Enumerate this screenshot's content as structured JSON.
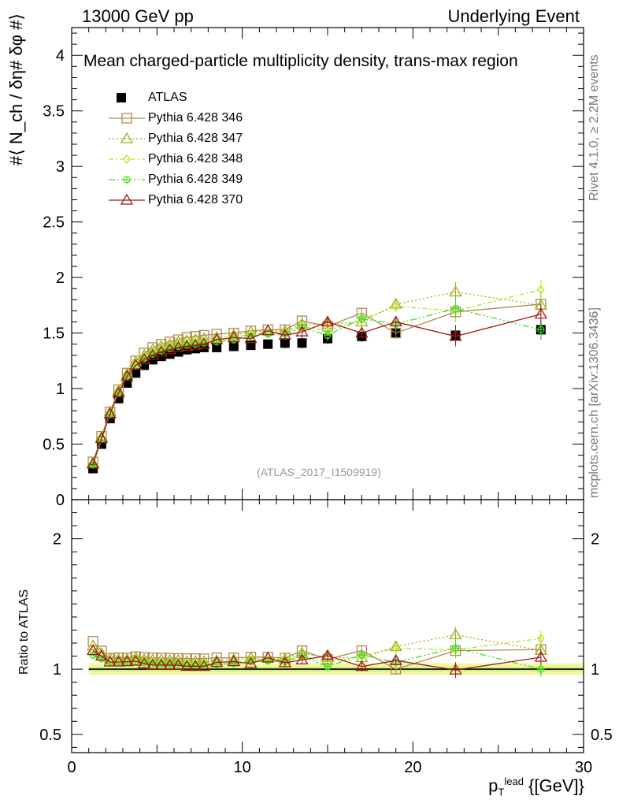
{
  "header": {
    "left": "13000 GeV pp",
    "right": "Underlying Event"
  },
  "side_labels": {
    "rivet": "Rivet 4.1.0, ≥ 2.2M events",
    "mcplots": "mcplots.cern.ch [arXiv:1306.3436]"
  },
  "watermark": "(ATLAS_2017_I1509919)",
  "chart_data": [
    {
      "type": "scatter",
      "panel": "main",
      "title": "Mean charged-particle multiplicity density, trans-max region",
      "ylabel": "#⟨ N_ch / δη# δφ #⟩",
      "ylim": [
        0,
        4.25
      ],
      "xlim": [
        0,
        30
      ],
      "yticks": [
        "0",
        "0.5",
        "1",
        "1.5",
        "2",
        "2.5",
        "3",
        "3.5",
        "4"
      ],
      "x": [
        1.25,
        1.75,
        2.25,
        2.75,
        3.25,
        3.75,
        4.25,
        4.75,
        5.25,
        5.75,
        6.25,
        6.75,
        7.25,
        7.75,
        8.5,
        9.5,
        10.5,
        11.5,
        12.5,
        13.5,
        15,
        17,
        19,
        22.5,
        27.5
      ],
      "series": [
        {
          "name": "ATLAS",
          "color": "#000000",
          "marker": "filled-square",
          "values": [
            0.28,
            0.5,
            0.73,
            0.91,
            1.05,
            1.14,
            1.21,
            1.26,
            1.29,
            1.31,
            1.33,
            1.35,
            1.36,
            1.37,
            1.37,
            1.38,
            1.39,
            1.4,
            1.41,
            1.41,
            1.45,
            1.47,
            1.5,
            1.48,
            1.53
          ]
        },
        {
          "name": "Pythia 6.428 346",
          "color": "#b08a50",
          "marker": "open-square",
          "values": [
            0.34,
            0.57,
            0.79,
            0.99,
            1.14,
            1.25,
            1.32,
            1.37,
            1.4,
            1.42,
            1.44,
            1.46,
            1.47,
            1.48,
            1.49,
            1.5,
            1.52,
            1.53,
            1.53,
            1.61,
            1.56,
            1.68,
            1.5,
            1.69,
            1.76
          ]
        },
        {
          "name": "Pythia 6.428 347",
          "color": "#a0b018",
          "marker": "open-triangle",
          "values": [
            0.33,
            0.56,
            0.79,
            0.98,
            1.13,
            1.24,
            1.3,
            1.35,
            1.38,
            1.4,
            1.42,
            1.43,
            1.44,
            1.45,
            1.46,
            1.48,
            1.51,
            1.52,
            1.52,
            1.58,
            1.58,
            1.6,
            1.76,
            1.87,
            1.75
          ]
        },
        {
          "name": "Pythia 6.428 348",
          "color": "#b8e020",
          "marker": "open-diamond",
          "values": [
            0.32,
            0.55,
            0.78,
            0.97,
            1.12,
            1.23,
            1.29,
            1.33,
            1.36,
            1.38,
            1.4,
            1.41,
            1.42,
            1.43,
            1.44,
            1.46,
            1.49,
            1.5,
            1.51,
            1.56,
            1.52,
            1.62,
            1.74,
            1.7,
            1.89
          ]
        },
        {
          "name": "Pythia 6.428 349",
          "color": "#40e020",
          "marker": "open-circle-cross",
          "values": [
            0.31,
            0.54,
            0.77,
            0.96,
            1.11,
            1.21,
            1.27,
            1.31,
            1.34,
            1.36,
            1.38,
            1.39,
            1.4,
            1.41,
            1.42,
            1.44,
            1.47,
            1.49,
            1.49,
            1.55,
            1.48,
            1.63,
            1.58,
            1.72,
            1.53
          ]
        },
        {
          "name": "Pythia 6.428 370",
          "color": "#a01818",
          "marker": "open-triangle",
          "values": [
            0.32,
            0.55,
            0.77,
            0.96,
            1.11,
            1.21,
            1.26,
            1.3,
            1.33,
            1.35,
            1.37,
            1.38,
            1.39,
            1.4,
            1.44,
            1.46,
            1.45,
            1.52,
            1.48,
            1.51,
            1.6,
            1.5,
            1.6,
            1.47,
            1.67
          ]
        }
      ]
    },
    {
      "type": "scatter",
      "panel": "ratio",
      "ylabel": "Ratio to ATLAS",
      "xlabel": "p_T^lead {[GeV]}",
      "xlim": [
        0,
        30
      ],
      "ylim": [
        0.36,
        2.3
      ],
      "yticks": [
        "0.5",
        "1",
        "2"
      ],
      "xticks": [
        "0",
        "10",
        "20",
        "30"
      ],
      "reference": 1
    }
  ],
  "axis_labels": {
    "x_main": "p",
    "x_sub": "T",
    "x_sup": "lead",
    "x_unit": " {[GeV]}",
    "y_ratio": "Ratio to ATLAS"
  }
}
